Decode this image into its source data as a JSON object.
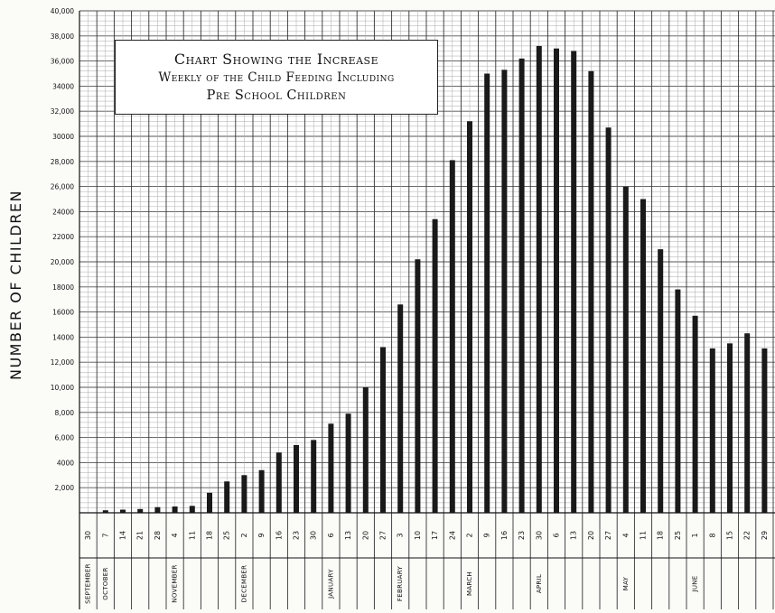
{
  "chart_data": {
    "type": "bar",
    "title_lines": [
      "Chart Showing the Increase",
      "Weekly of the Child Feeding Including",
      "Pre School Children"
    ],
    "ylabel": "NUMBER OF CHILDREN",
    "xlabel": "",
    "ylim": [
      0,
      40000
    ],
    "yticks": [
      "2,000",
      "4000",
      "6,000",
      "8,000",
      "10,000",
      "12,000",
      "14000",
      "16000",
      "18000",
      "20,000",
      "22000",
      "24000",
      "26,000",
      "28,000",
      "30000",
      "32,000",
      "34000",
      "36,000",
      "38,000",
      "40,000"
    ],
    "grid": true,
    "legend": "none",
    "bar_color": "#1a1a1a",
    "categories": [
      "30",
      "7",
      "14",
      "21",
      "28",
      "4",
      "11",
      "18",
      "25",
      "2",
      "9",
      "16",
      "23",
      "30",
      "6",
      "13",
      "20",
      "27",
      "3",
      "10",
      "17",
      "24",
      "2",
      "9",
      "16",
      "23",
      "30",
      "6",
      "13",
      "20",
      "27",
      "4",
      "11",
      "18",
      "25",
      "1",
      "8",
      "15",
      "22",
      "29"
    ],
    "values": [
      0,
      200,
      250,
      300,
      450,
      500,
      550,
      1600,
      2500,
      3000,
      3400,
      4800,
      5400,
      5800,
      7100,
      7900,
      10000,
      13200,
      16600,
      20200,
      23400,
      28100,
      31200,
      35000,
      35300,
      36200,
      37200,
      37000,
      36800,
      35200,
      30700,
      26000,
      25000,
      21000,
      17800,
      15700,
      13100,
      13500,
      14300,
      13100
    ],
    "months": [
      {
        "label": "SEPTEMBER",
        "start": 0
      },
      {
        "label": "OCTOBER",
        "start": 1
      },
      {
        "label": "NOVEMBER",
        "start": 5
      },
      {
        "label": "DECEMBER",
        "start": 9
      },
      {
        "label": "JANUARY",
        "start": 14
      },
      {
        "label": "FEBRUARY",
        "start": 18
      },
      {
        "label": "MARCH",
        "start": 22
      },
      {
        "label": "APRIL",
        "start": 26
      },
      {
        "label": "MAY",
        "start": 31
      },
      {
        "label": "JUNE",
        "start": 35
      }
    ]
  }
}
